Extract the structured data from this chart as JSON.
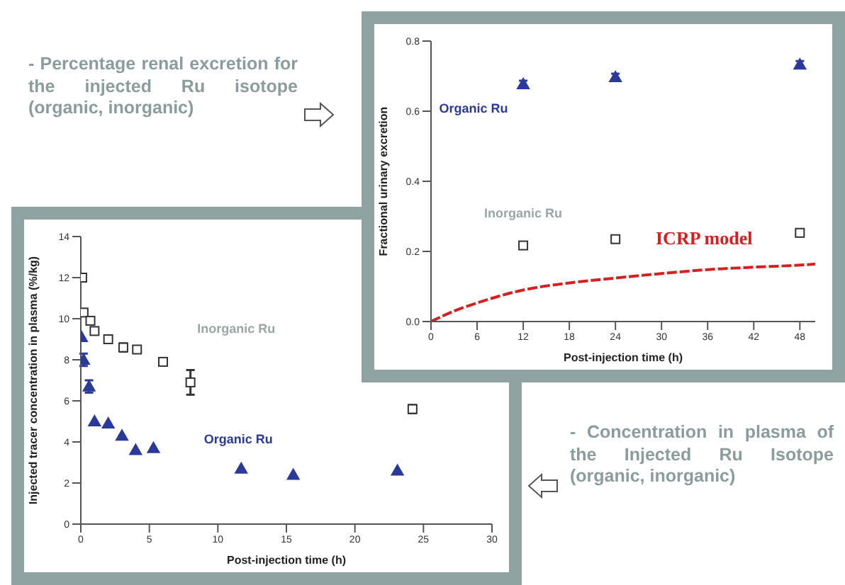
{
  "chart_data": [
    {
      "type": "scatter",
      "xlabel": "Post-injection time (h)",
      "ylabel": "Fractional urinary excretion",
      "xlim": [
        0,
        50
      ],
      "xticks": [
        0,
        6,
        12,
        18,
        24,
        30,
        36,
        42,
        48
      ],
      "ylim": [
        0,
        0.8
      ],
      "yticks": [
        {
          "value": 0,
          "label": "0.0"
        },
        {
          "value": 0.2,
          "label": "0.2"
        },
        {
          "value": 0.4,
          "label": "0.4"
        },
        {
          "value": 0.6,
          "label": "0.6"
        },
        {
          "value": 0.8,
          "label": "0.8"
        }
      ],
      "grid": false,
      "legend": false,
      "series": [
        {
          "name": "Organic Ru",
          "color": "#2b3a9a",
          "marker": "triangle",
          "x": [
            12,
            24,
            48
          ],
          "values": [
            0.677,
            0.697,
            0.733
          ],
          "errors": [
            0.01,
            0.01,
            0.01
          ]
        },
        {
          "name": "Inorganic Ru",
          "color": "#333333",
          "marker": "square",
          "x": [
            12,
            24,
            48
          ],
          "values": [
            0.217,
            0.235,
            0.253
          ],
          "errors": [
            0.01,
            0.01,
            0.01
          ]
        },
        {
          "name": "ICRP model",
          "type": "line",
          "color": "#d42020",
          "line_style": "dashed",
          "marker": "none",
          "x": [
            0,
            3,
            6,
            12,
            18,
            24,
            30,
            36,
            42,
            48,
            50
          ],
          "values": [
            0,
            0.03,
            0.053,
            0.09,
            0.11,
            0.124,
            0.137,
            0.148,
            0.155,
            0.161,
            0.164
          ]
        }
      ],
      "annotations": [
        "- Percentage renal excretion for the injected Ru isotope (organic, inorganic)"
      ]
    },
    {
      "type": "scatter",
      "xlabel": "Post-injection time (h)",
      "ylabel": "Injected tracer concentration in plasma (%/kg)",
      "xlim": [
        0,
        30
      ],
      "xticks": [
        0,
        5,
        10,
        15,
        20,
        25,
        30
      ],
      "ylim": [
        0,
        14
      ],
      "yticks": [
        0,
        2,
        4,
        6,
        8,
        10,
        12,
        14
      ],
      "grid": false,
      "legend": false,
      "series": [
        {
          "name": "Organic Ru",
          "color": "#2b3a9a",
          "marker": "triangle",
          "x": [
            0.05,
            0.2,
            0.6,
            1,
            2,
            3,
            4,
            5.3,
            11.7,
            15.5,
            23.1
          ],
          "values": [
            9.1,
            8,
            6.7,
            5,
            4.9,
            4.3,
            3.6,
            3.7,
            2.7,
            2.4,
            2.6
          ],
          "errors": [
            null,
            0.3,
            0.3,
            null,
            null,
            null,
            null,
            null,
            null,
            null,
            null
          ]
        },
        {
          "name": "Inorganic Ru",
          "color": "#333333",
          "marker": "square",
          "x": [
            0.1,
            0.2,
            0.7,
            1,
            2,
            3.1,
            4.1,
            6,
            8,
            24.2
          ],
          "values": [
            12,
            10.3,
            9.9,
            9.4,
            9,
            8.6,
            8.5,
            7.9,
            6.9,
            5.6
          ],
          "errors": [
            null,
            null,
            null,
            null,
            null,
            0.2,
            null,
            null,
            0.6,
            0.2
          ]
        }
      ],
      "annotations": [
        "- Concentration in plasma of the Injected Ru Isotope (organic, inorganic)"
      ]
    }
  ]
}
